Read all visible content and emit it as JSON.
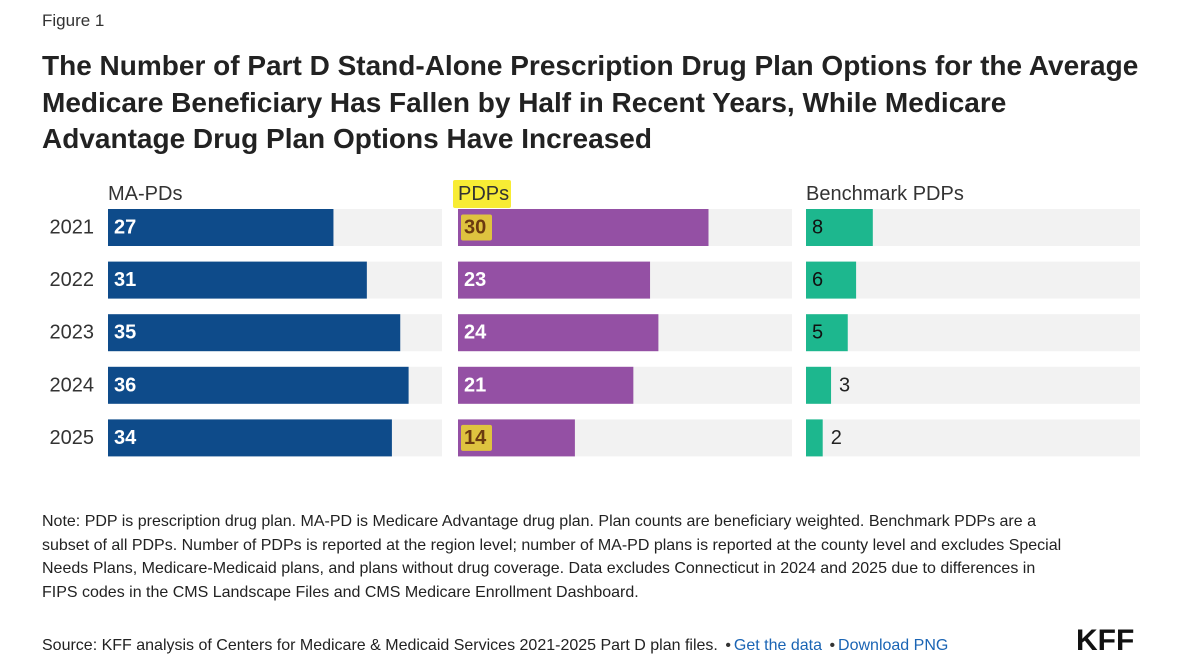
{
  "figure_label": "Figure 1",
  "title": "The Number of Part D Stand-Alone Prescription Drug Plan Options for the Average Medicare Beneficiary Has Fallen by Half in Recent Years, While Medicare Advantage Drug Plan Options Have Increased",
  "chart_data": {
    "type": "bar",
    "orientation": "horizontal",
    "layout": "small-multiples",
    "categories": [
      "2021",
      "2022",
      "2023",
      "2024",
      "2025"
    ],
    "panels": [
      {
        "name": "MA-PDs",
        "color": "#0e4b8a",
        "values": [
          27,
          31,
          35,
          36,
          34
        ],
        "xlim": [
          0,
          40
        ],
        "highlighted": []
      },
      {
        "name": "PDPs",
        "color": "#9450a4",
        "values": [
          30,
          23,
          24,
          21,
          14
        ],
        "xlim": [
          0,
          40
        ],
        "highlighted": [
          "2021",
          "2025"
        ]
      },
      {
        "name": "Benchmark PDPs",
        "color": "#1db78e",
        "values": [
          8,
          6,
          5,
          3,
          2
        ],
        "xlim": [
          0,
          40
        ],
        "highlighted": []
      }
    ],
    "track_color": "#f2f2f2",
    "highlight_color": "#f7ea1e",
    "header_highlight": "PDPs",
    "grid": false,
    "legend": "none"
  },
  "note": "Note: PDP is prescription drug plan. MA-PD is Medicare Advantage drug plan. Plan counts are beneficiary weighted. Benchmark PDPs are a subset of all PDPs. Number of PDPs is reported at the region level; number of MA-PD plans is reported at the county level and excludes Special Needs Plans, Medicare-Medicaid plans, and plans without drug coverage. Data excludes Connecticut in 2024 and 2025 due to differences in FIPS codes in the CMS Landscape Files and CMS Medicare Enrollment Dashboard.",
  "source": "Source: KFF analysis of Centers for Medicare & Medicaid Services 2021-2025 Part D plan files.",
  "links": {
    "get_data": "Get the data",
    "download_png": "Download PNG"
  },
  "separator": "•",
  "logo_text": "KFF"
}
